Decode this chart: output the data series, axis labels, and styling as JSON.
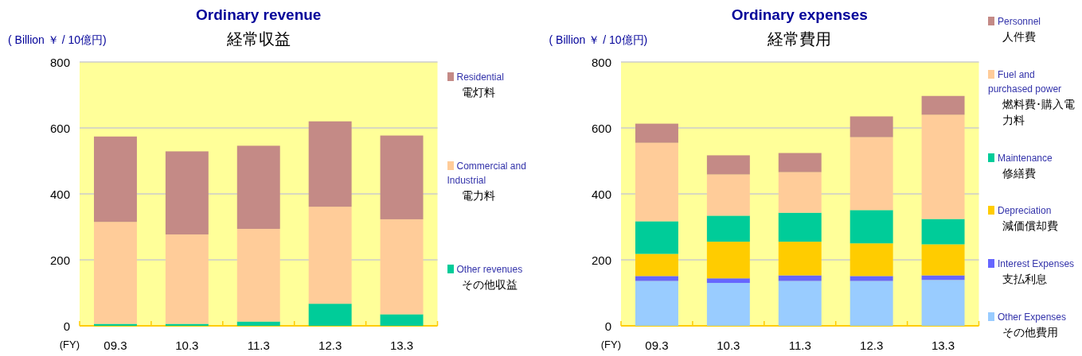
{
  "chart_data": [
    {
      "type": "bar",
      "stacked": true,
      "title": "Ordinary revenue",
      "subtitle": "経常収益",
      "ylabel": "( Billion ￥ / 10億円)",
      "xlabel": "(FY)",
      "categories": [
        "09.3",
        "10.3",
        "11.3",
        "12.3",
        "13.3"
      ],
      "series": [
        {
          "name": "Other revenues\nその他収益",
          "color": "#00cc99",
          "values": [
            6,
            6,
            13,
            67,
            35
          ]
        },
        {
          "name": "Commercial and Industrial\n電力料",
          "color": "#ffcc99",
          "values": [
            309,
            271,
            281,
            294,
            288
          ]
        },
        {
          "name": "Residential\n電灯料",
          "color": "#c48a86",
          "values": [
            259,
            252,
            252,
            259,
            254
          ]
        }
      ],
      "ylim": [
        0,
        800
      ],
      "yticks": [
        0,
        200,
        400,
        600,
        800
      ],
      "grid": "y",
      "legend": "right"
    },
    {
      "type": "bar",
      "stacked": true,
      "title": "Ordinary expenses",
      "subtitle": "経常費用",
      "ylabel": "( Billion ￥ / 10億円)",
      "xlabel": "(FY)",
      "categories": [
        "09.3",
        "10.3",
        "11.3",
        "12.3",
        "13.3"
      ],
      "series": [
        {
          "name": "Other Expenses\nその他費用",
          "color": "#99ccff",
          "values": [
            136,
            130,
            136,
            136,
            139
          ]
        },
        {
          "name": "Interest Expenses\n支払利息",
          "color": "#6666ff",
          "values": [
            15,
            14,
            17,
            15,
            14
          ]
        },
        {
          "name": "Depreciation\n減価償却費",
          "color": "#ffcc00",
          "values": [
            67,
            111,
            102,
            99,
            94
          ]
        },
        {
          "name": "Maintenance\n修繕費",
          "color": "#00cc99",
          "values": [
            99,
            79,
            88,
            101,
            77
          ]
        },
        {
          "name": "Fuel and purchased power\n燃料費･購入電力料",
          "color": "#ffcc99",
          "values": [
            238,
            125,
            123,
            221,
            316
          ]
        },
        {
          "name": "Personnel\n人件費",
          "color": "#c48a86",
          "values": [
            58,
            58,
            58,
            63,
            57
          ]
        }
      ],
      "ylim": [
        0,
        800
      ],
      "yticks": [
        0,
        200,
        400,
        600,
        800
      ],
      "grid": "y",
      "legend": "right"
    }
  ]
}
